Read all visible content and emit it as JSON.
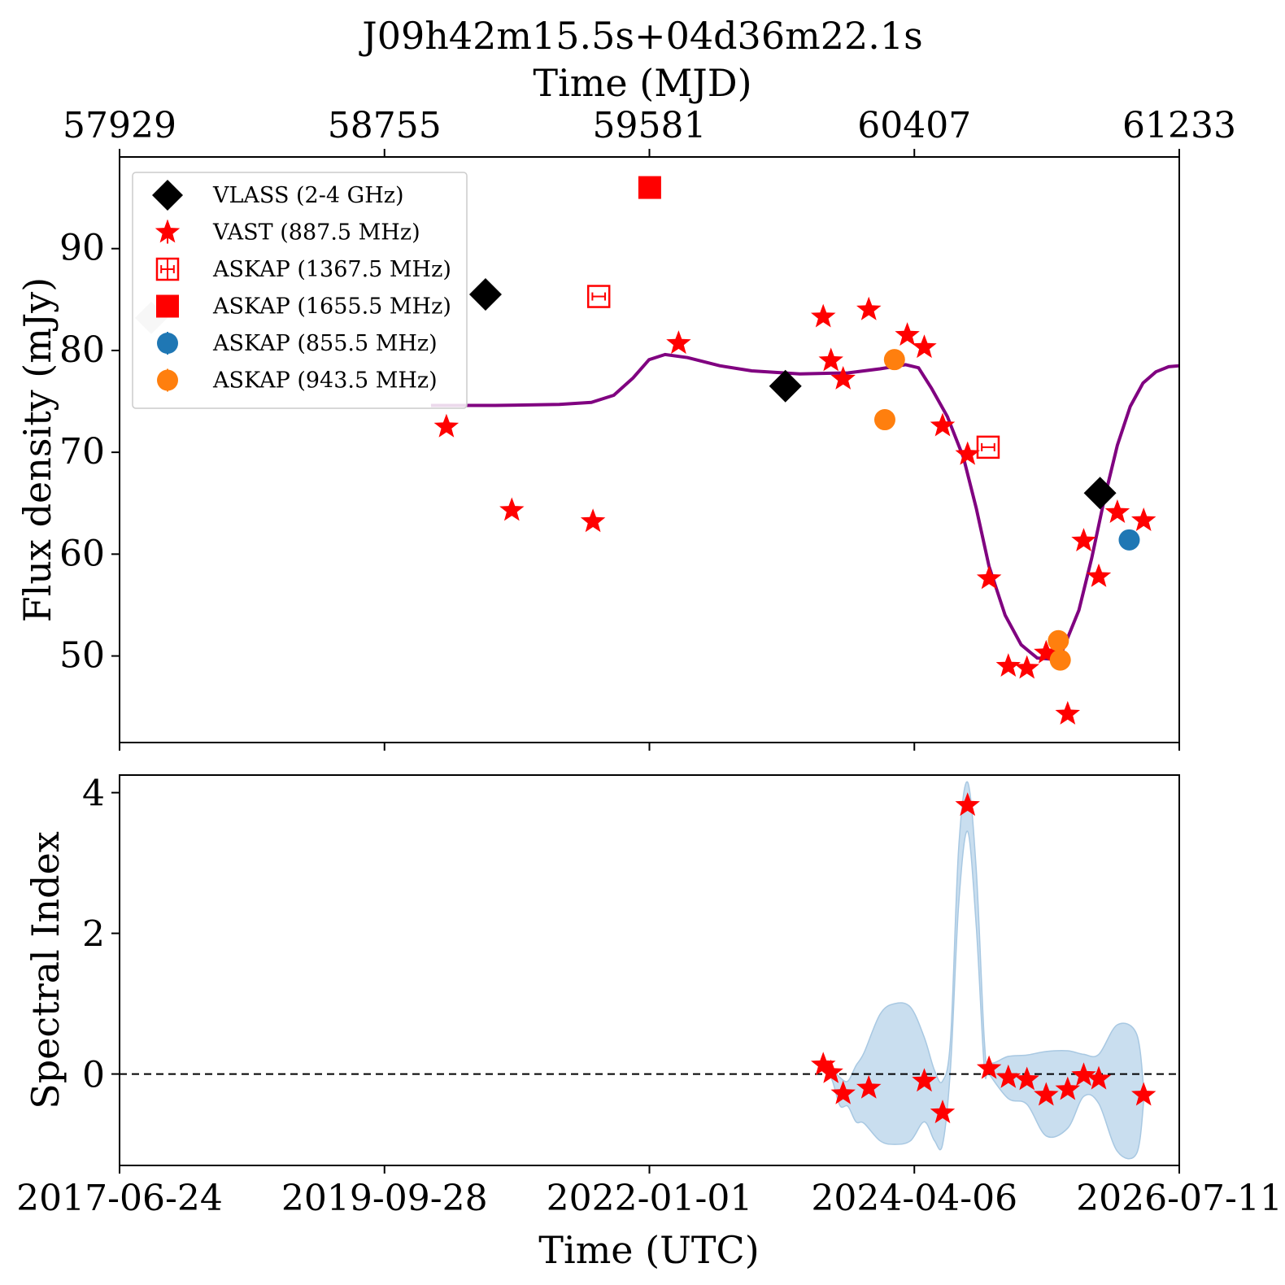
{
  "chart_data": [
    {
      "type": "scatter",
      "panel": "flux",
      "title": "J09h42m15.5s+04d36m22.1s",
      "top_xlabel": "Time (MJD)",
      "top_ticks": [
        "57929",
        "58755",
        "59581",
        "60407",
        "61233"
      ],
      "ylabel": "Flux density (mJy)",
      "xlim_mjd": [
        57929,
        61233
      ],
      "ylim": [
        41.5,
        99
      ],
      "yticks": [
        50,
        60,
        70,
        80,
        90
      ],
      "legend": {
        "position": "top-left",
        "entries": [
          {
            "key": "vlass",
            "label": "VLASS (2-4 GHz)",
            "marker": "diamond",
            "color": "#000000"
          },
          {
            "key": "vast",
            "label": "VAST (887.5 MHz)",
            "marker": "star",
            "color": "#ff0000"
          },
          {
            "key": "askap1367",
            "label": "ASKAP (1367.5 MHz)",
            "marker": "open-square",
            "color": "#ff0000"
          },
          {
            "key": "askap1655",
            "label": "ASKAP (1655.5 MHz)",
            "marker": "square",
            "color": "#ff0000"
          },
          {
            "key": "askap855",
            "label": "ASKAP (855.5 MHz)",
            "marker": "circle",
            "color": "#1f77b4"
          },
          {
            "key": "askap943",
            "label": "ASKAP (943.5 MHz)",
            "marker": "circle",
            "color": "#ff7f0e"
          }
        ]
      },
      "series": {
        "vlass_faded": [
          [
            58028,
            83.2
          ]
        ],
        "vlass": [
          [
            59070,
            85.5
          ],
          [
            60005,
            76.5
          ],
          [
            60986,
            66.0
          ]
        ],
        "vast": [
          [
            58948,
            72.5
          ],
          [
            59152,
            64.3
          ],
          [
            59405,
            63.2
          ],
          [
            59672,
            80.7
          ],
          [
            60123,
            83.3
          ],
          [
            60147,
            79.0
          ],
          [
            60185,
            77.2
          ],
          [
            60265,
            84.0
          ],
          [
            60385,
            81.5
          ],
          [
            60438,
            80.3
          ],
          [
            60495,
            72.6
          ],
          [
            60573,
            69.8
          ],
          [
            60640,
            57.6
          ],
          [
            60700,
            49.0
          ],
          [
            60758,
            48.8
          ],
          [
            60818,
            50.3
          ],
          [
            60885,
            44.3
          ],
          [
            60935,
            61.3
          ],
          [
            60982,
            57.8
          ],
          [
            61040,
            64.1
          ],
          [
            61122,
            63.3
          ]
        ],
        "askap1367": [
          [
            59423,
            85.3
          ],
          [
            60637,
            70.5
          ]
        ],
        "askap1655": [
          [
            59582,
            96.0
          ]
        ],
        "askap855": [
          [
            61077,
            61.4
          ]
        ],
        "askap943": [
          [
            60315,
            73.2
          ],
          [
            60345,
            79.1
          ],
          [
            60856,
            51.5
          ],
          [
            60862,
            49.6
          ]
        ]
      },
      "model_curve": [
        [
          58900,
          74.6
        ],
        [
          59100,
          74.6
        ],
        [
          59300,
          74.7
        ],
        [
          59400,
          74.9
        ],
        [
          59470,
          75.6
        ],
        [
          59530,
          77.3
        ],
        [
          59580,
          79.1
        ],
        [
          59630,
          79.6
        ],
        [
          59700,
          79.3
        ],
        [
          59800,
          78.5
        ],
        [
          59900,
          78.0
        ],
        [
          60050,
          77.7
        ],
        [
          60200,
          77.8
        ],
        [
          60300,
          78.2
        ],
        [
          60380,
          78.6
        ],
        [
          60420,
          78.3
        ],
        [
          60460,
          76.3
        ],
        [
          60510,
          73.5
        ],
        [
          60560,
          69.5
        ],
        [
          60600,
          64.5
        ],
        [
          60640,
          58.8
        ],
        [
          60690,
          54.0
        ],
        [
          60740,
          51.1
        ],
        [
          60790,
          49.8
        ],
        [
          60830,
          49.7
        ],
        [
          60870,
          50.6
        ],
        [
          60920,
          54.5
        ],
        [
          60960,
          59.6
        ],
        [
          61000,
          65.5
        ],
        [
          61040,
          70.7
        ],
        [
          61080,
          74.5
        ],
        [
          61120,
          76.8
        ],
        [
          61160,
          77.9
        ],
        [
          61200,
          78.4
        ],
        [
          61233,
          78.5
        ]
      ],
      "model_color": "#800080"
    },
    {
      "type": "scatter",
      "panel": "spectral-index",
      "ylabel": "Spectral Index",
      "xlabel": "Time (UTC)",
      "xticks": [
        "2017-06-24",
        "2019-09-28",
        "2022-01-01",
        "2024-04-06",
        "2026-07-11"
      ],
      "xlim_mjd": [
        57929,
        61233
      ],
      "ylim": [
        -1.3,
        4.25
      ],
      "yticks": [
        0,
        2,
        4
      ],
      "reference_line": 0,
      "points": [
        [
          60123,
          0.13
        ],
        [
          60147,
          0.02
        ],
        [
          60185,
          -0.28
        ],
        [
          60265,
          -0.2
        ],
        [
          60438,
          -0.1
        ],
        [
          60495,
          -0.55
        ],
        [
          60573,
          3.82
        ],
        [
          60640,
          0.08
        ],
        [
          60700,
          -0.05
        ],
        [
          60758,
          -0.08
        ],
        [
          60818,
          -0.3
        ],
        [
          60885,
          -0.22
        ],
        [
          60935,
          -0.02
        ],
        [
          60982,
          -0.07
        ],
        [
          61122,
          -0.3
        ]
      ],
      "band_mean": [
        [
          60123,
          0.13
        ],
        [
          60150,
          0.0
        ],
        [
          60175,
          -0.25
        ],
        [
          60200,
          -0.28
        ],
        [
          60225,
          -0.28
        ],
        [
          60250,
          -0.2
        ],
        [
          60300,
          -0.05
        ],
        [
          60345,
          0.0
        ],
        [
          60395,
          0.0
        ],
        [
          60438,
          -0.08
        ],
        [
          60470,
          -0.45
        ],
        [
          60495,
          -0.55
        ],
        [
          60520,
          0.3
        ],
        [
          60545,
          2.8
        ],
        [
          60573,
          3.8
        ],
        [
          60600,
          2.5
        ],
        [
          60625,
          0.3
        ],
        [
          60640,
          0.08
        ],
        [
          60700,
          -0.05
        ],
        [
          60758,
          -0.08
        ],
        [
          60818,
          -0.28
        ],
        [
          60885,
          -0.22
        ],
        [
          60935,
          -0.02
        ],
        [
          60982,
          -0.07
        ],
        [
          61040,
          -0.2
        ],
        [
          61100,
          -0.28
        ],
        [
          61122,
          -0.3
        ]
      ],
      "band_halfwidth": [
        [
          60123,
          0.05
        ],
        [
          60150,
          0.08
        ],
        [
          60175,
          0.2
        ],
        [
          60200,
          0.18
        ],
        [
          60225,
          0.4
        ],
        [
          60250,
          0.5
        ],
        [
          60300,
          0.9
        ],
        [
          60345,
          1.0
        ],
        [
          60395,
          0.95
        ],
        [
          60438,
          0.6
        ],
        [
          60470,
          0.5
        ],
        [
          60495,
          0.45
        ],
        [
          60520,
          0.2
        ],
        [
          60545,
          0.4
        ],
        [
          60573,
          0.35
        ],
        [
          60600,
          0.4
        ],
        [
          60625,
          0.2
        ],
        [
          60640,
          0.08
        ],
        [
          60700,
          0.3
        ],
        [
          60758,
          0.35
        ],
        [
          60818,
          0.6
        ],
        [
          60885,
          0.55
        ],
        [
          60935,
          0.3
        ],
        [
          60982,
          0.35
        ],
        [
          61040,
          0.9
        ],
        [
          61100,
          0.85
        ],
        [
          61122,
          0.1
        ]
      ],
      "band_color": "#b7d3e9"
    }
  ]
}
